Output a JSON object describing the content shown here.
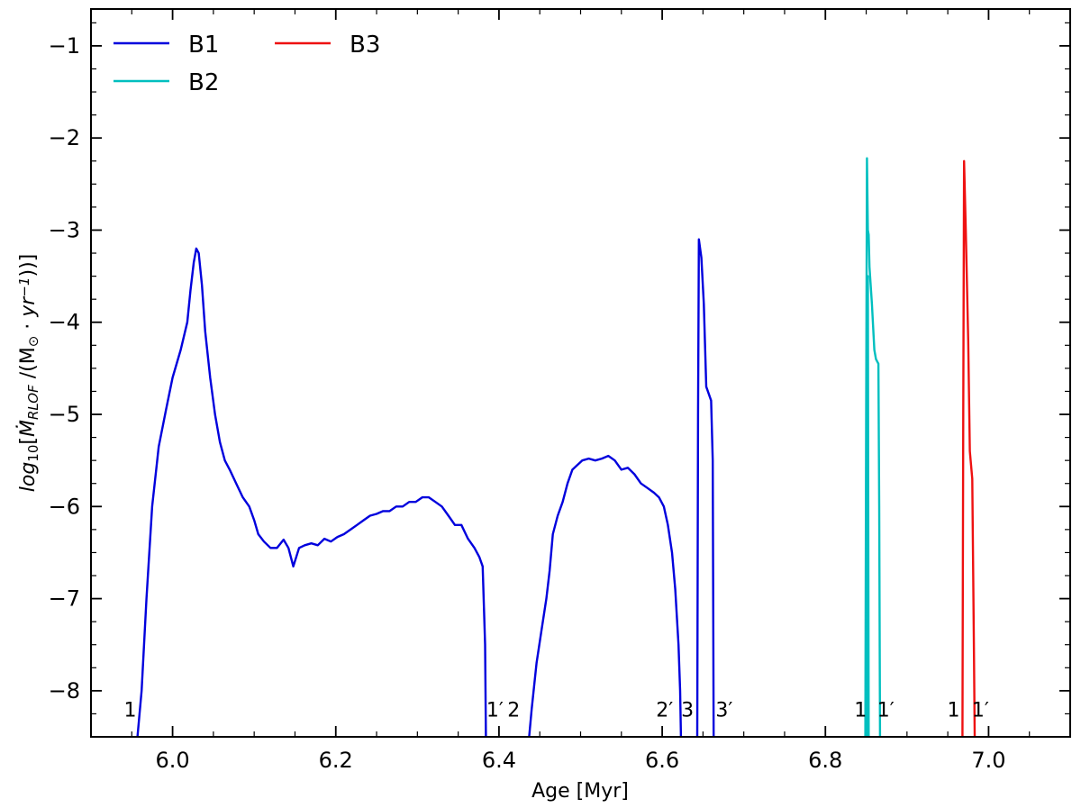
{
  "chart_data": {
    "type": "line",
    "xlabel": "Age [Myr]",
    "ylabel": "log10[Ṁ_RLOF /(M⊙ · yr⁻¹)]",
    "xlim": [
      5.9,
      7.1
    ],
    "ylim": [
      -8.5,
      -0.6
    ],
    "xticks": [
      "6.0",
      "6.2",
      "6.4",
      "6.6",
      "6.8",
      "7.0"
    ],
    "xtick_values": [
      6.0,
      6.2,
      6.4,
      6.6,
      6.8,
      7.0
    ],
    "yticks": [
      "−8",
      "−7",
      "−6",
      "−5",
      "−4",
      "−3",
      "−2",
      "−1"
    ],
    "ytick_values": [
      -8,
      -7,
      -6,
      -5,
      -4,
      -3,
      -2,
      -1
    ],
    "legend_position": "top-left",
    "series": [
      {
        "name": "B1",
        "color": "#0000dd",
        "segments": [
          [
            [
              5.957,
              -8.5
            ],
            [
              5.962,
              -8.0
            ],
            [
              5.968,
              -7.0
            ],
            [
              5.975,
              -6.0
            ],
            [
              5.983,
              -5.35
            ],
            [
              5.992,
              -4.95
            ],
            [
              6.0,
              -4.6
            ],
            [
              6.01,
              -4.3
            ],
            [
              6.018,
              -4.0
            ],
            [
              6.022,
              -3.65
            ],
            [
              6.026,
              -3.35
            ],
            [
              6.029,
              -3.2
            ],
            [
              6.032,
              -3.25
            ],
            [
              6.036,
              -3.6
            ],
            [
              6.04,
              -4.1
            ],
            [
              6.046,
              -4.6
            ],
            [
              6.052,
              -5.0
            ],
            [
              6.058,
              -5.3
            ],
            [
              6.064,
              -5.5
            ],
            [
              6.07,
              -5.6
            ],
            [
              6.078,
              -5.75
            ],
            [
              6.086,
              -5.9
            ],
            [
              6.094,
              -6.0
            ],
            [
              6.1,
              -6.15
            ],
            [
              6.105,
              -6.3
            ],
            [
              6.112,
              -6.38
            ],
            [
              6.12,
              -6.45
            ],
            [
              6.128,
              -6.45
            ],
            [
              6.136,
              -6.36
            ],
            [
              6.142,
              -6.45
            ],
            [
              6.148,
              -6.65
            ],
            [
              6.155,
              -6.45
            ],
            [
              6.162,
              -6.42
            ],
            [
              6.17,
              -6.4
            ],
            [
              6.178,
              -6.42
            ],
            [
              6.186,
              -6.35
            ],
            [
              6.194,
              -6.38
            ],
            [
              6.202,
              -6.33
            ],
            [
              6.21,
              -6.3
            ],
            [
              6.218,
              -6.25
            ],
            [
              6.226,
              -6.2
            ],
            [
              6.234,
              -6.15
            ],
            [
              6.242,
              -6.1
            ],
            [
              6.25,
              -6.08
            ],
            [
              6.258,
              -6.05
            ],
            [
              6.266,
              -6.05
            ],
            [
              6.274,
              -6.0
            ],
            [
              6.282,
              -6.0
            ],
            [
              6.29,
              -5.95
            ],
            [
              6.298,
              -5.95
            ],
            [
              6.306,
              -5.9
            ],
            [
              6.314,
              -5.9
            ],
            [
              6.322,
              -5.95
            ],
            [
              6.33,
              -6.0
            ],
            [
              6.338,
              -6.1
            ],
            [
              6.346,
              -6.2
            ],
            [
              6.354,
              -6.2
            ],
            [
              6.362,
              -6.35
            ],
            [
              6.37,
              -6.45
            ],
            [
              6.376,
              -6.55
            ],
            [
              6.38,
              -6.65
            ],
            [
              6.383,
              -7.5
            ],
            [
              6.384,
              -8.5
            ]
          ],
          [
            [
              6.437,
              -8.5
            ],
            [
              6.44,
              -8.2
            ],
            [
              6.446,
              -7.7
            ],
            [
              6.452,
              -7.35
            ],
            [
              6.458,
              -7.0
            ],
            [
              6.462,
              -6.7
            ],
            [
              6.466,
              -6.3
            ],
            [
              6.472,
              -6.1
            ],
            [
              6.478,
              -5.95
            ],
            [
              6.484,
              -5.75
            ],
            [
              6.49,
              -5.6
            ],
            [
              6.496,
              -5.55
            ],
            [
              6.502,
              -5.5
            ],
            [
              6.51,
              -5.48
            ],
            [
              6.518,
              -5.5
            ],
            [
              6.526,
              -5.48
            ],
            [
              6.534,
              -5.45
            ],
            [
              6.542,
              -5.5
            ],
            [
              6.55,
              -5.6
            ],
            [
              6.558,
              -5.58
            ],
            [
              6.566,
              -5.65
            ],
            [
              6.574,
              -5.75
            ],
            [
              6.582,
              -5.8
            ],
            [
              6.59,
              -5.85
            ],
            [
              6.596,
              -5.9
            ],
            [
              6.602,
              -6.0
            ],
            [
              6.607,
              -6.2
            ],
            [
              6.612,
              -6.5
            ],
            [
              6.616,
              -6.9
            ],
            [
              6.62,
              -7.5
            ],
            [
              6.622,
              -8.0
            ],
            [
              6.623,
              -8.5
            ]
          ],
          [
            [
              6.643,
              -8.5
            ],
            [
              6.644,
              -5.0
            ],
            [
              6.645,
              -3.1
            ],
            [
              6.648,
              -3.3
            ],
            [
              6.651,
              -3.8
            ],
            [
              6.654,
              -4.7
            ],
            [
              6.66,
              -4.85
            ],
            [
              6.662,
              -5.5
            ],
            [
              6.663,
              -8.5
            ]
          ]
        ]
      },
      {
        "name": "B2",
        "color": "#00bfbf",
        "segments": [
          [
            [
              6.849,
              -8.5
            ],
            [
              6.85,
              -5.0
            ],
            [
              6.851,
              -2.22
            ],
            [
              6.852,
              -3.0
            ],
            [
              6.853,
              -3.05
            ],
            [
              6.854,
              -3.4
            ],
            [
              6.857,
              -3.8
            ],
            [
              6.86,
              -4.3
            ],
            [
              6.862,
              -4.4
            ],
            [
              6.865,
              -4.45
            ],
            [
              6.866,
              -6.0
            ],
            [
              6.867,
              -8.5
            ]
          ],
          [
            [
              6.851,
              -8.5
            ],
            [
              6.852,
              -3.5
            ],
            [
              6.853,
              -8.5
            ]
          ]
        ]
      },
      {
        "name": "B3",
        "color": "#ee1111",
        "segments": [
          [
            [
              6.968,
              -8.5
            ],
            [
              6.969,
              -5.0
            ],
            [
              6.97,
              -2.25
            ],
            [
              6.972,
              -3.0
            ],
            [
              6.975,
              -4.2
            ],
            [
              6.977,
              -5.4
            ],
            [
              6.979,
              -5.6
            ],
            [
              6.98,
              -5.7
            ],
            [
              6.982,
              -7.5
            ],
            [
              6.983,
              -8.5
            ]
          ]
        ]
      }
    ],
    "annotations": [
      {
        "text": "1",
        "x": 5.948,
        "y": -8.2
      },
      {
        "text": "1′",
        "x": 6.395,
        "y": -8.2
      },
      {
        "text": "2",
        "x": 6.418,
        "y": -8.2
      },
      {
        "text": "2′",
        "x": 6.603,
        "y": -8.2
      },
      {
        "text": "3",
        "x": 6.631,
        "y": -8.2
      },
      {
        "text": "3′",
        "x": 6.676,
        "y": -8.2
      },
      {
        "text": "1",
        "x": 6.843,
        "y": -8.2
      },
      {
        "text": "1′",
        "x": 6.874,
        "y": -8.2
      },
      {
        "text": "1",
        "x": 6.957,
        "y": -8.2
      },
      {
        "text": "1′",
        "x": 6.99,
        "y": -8.2
      }
    ]
  }
}
